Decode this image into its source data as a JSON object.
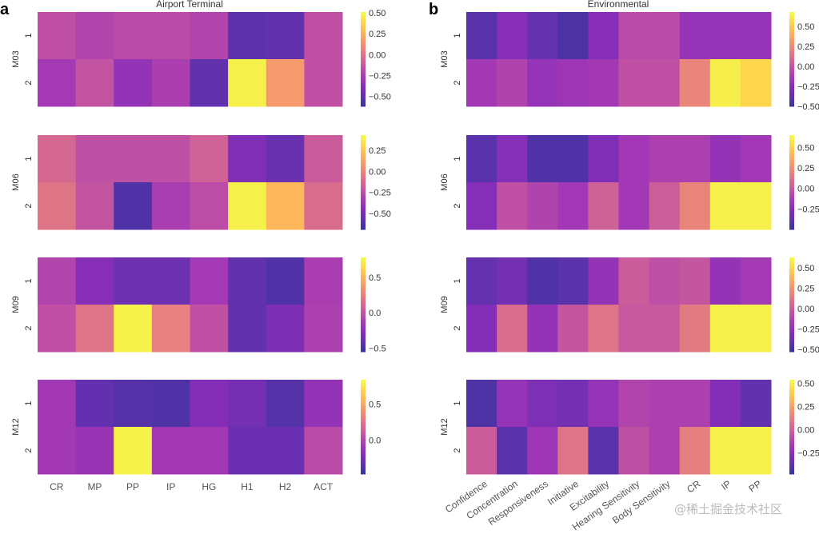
{
  "chart_data": [
    {
      "type": "heatmap",
      "panel": "a",
      "title": "Airport Terminal",
      "month": "M03",
      "rows": [
        "1",
        "2"
      ],
      "columns": [
        "CR",
        "MP",
        "PP",
        "IP",
        "HG",
        "H1",
        "H2",
        "ACT"
      ],
      "values": [
        [
          -0.17,
          -0.22,
          -0.19,
          -0.19,
          -0.22,
          -0.53,
          -0.51,
          -0.17
        ],
        [
          -0.28,
          -0.15,
          -0.34,
          -0.25,
          -0.51,
          0.48,
          0.17,
          -0.17
        ]
      ],
      "colorbar": {
        "range": [
          -0.62,
          0.51
        ],
        "ticks": [
          "0.50",
          "0.25",
          "0.00",
          "−0.25",
          "−0.50"
        ]
      }
    },
    {
      "type": "heatmap",
      "panel": "a",
      "month": "M06",
      "rows": [
        "1",
        "2"
      ],
      "columns": [
        "CR",
        "MP",
        "PP",
        "IP",
        "HG",
        "H1",
        "H2",
        "ACT"
      ],
      "values": [
        [
          -0.13,
          -0.24,
          -0.24,
          -0.24,
          -0.16,
          -0.49,
          -0.56,
          -0.19
        ],
        [
          -0.07,
          -0.22,
          -0.63,
          -0.33,
          -0.26,
          0.4,
          0.21,
          -0.11
        ]
      ],
      "colorbar": {
        "range": [
          -0.69,
          0.43
        ],
        "ticks": [
          "0.25",
          "0.00",
          "−0.25",
          "−0.50"
        ]
      }
    },
    {
      "type": "heatmap",
      "panel": "a",
      "month": "M09",
      "rows": [
        "1",
        "2"
      ],
      "columns": [
        "CR",
        "MP",
        "PP",
        "IP",
        "HG",
        "H1",
        "H2",
        "ACT"
      ],
      "values": [
        [
          -0.08,
          -0.28,
          -0.38,
          -0.38,
          -0.15,
          -0.42,
          -0.48,
          -0.12
        ],
        [
          -0.02,
          0.18,
          0.75,
          0.25,
          -0.02,
          -0.42,
          -0.32,
          -0.11
        ]
      ],
      "colorbar": {
        "range": [
          -0.55,
          0.78
        ],
        "ticks": [
          "0.5",
          "0.0",
          "−0.5"
        ]
      }
    },
    {
      "type": "heatmap",
      "panel": "a",
      "month": "M12",
      "rows": [
        "1",
        "2"
      ],
      "columns": [
        "CR",
        "MP",
        "PP",
        "IP",
        "HG",
        "H1",
        "H2",
        "ACT"
      ],
      "values": [
        [
          -0.08,
          -0.34,
          -0.38,
          -0.4,
          -0.21,
          -0.27,
          -0.38,
          -0.14
        ],
        [
          -0.08,
          -0.12,
          0.81,
          -0.08,
          -0.08,
          -0.31,
          -0.31,
          0.03
        ]
      ],
      "colorbar": {
        "range": [
          -0.47,
          0.84
        ],
        "ticks": [
          "0.5",
          "0.0"
        ]
      }
    },
    {
      "type": "heatmap",
      "panel": "b",
      "title": "Environmental",
      "month": "M03",
      "rows": [
        "1",
        "2"
      ],
      "columns": [
        "Confidence",
        "Concentration",
        "Responsiveness",
        "Initiative",
        "Excitability",
        "Hearing Sensitivity",
        "Body Sensitivity",
        "CR",
        "IP",
        "PP"
      ],
      "values": [
        [
          -0.41,
          -0.26,
          -0.38,
          -0.45,
          -0.26,
          -0.05,
          -0.05,
          -0.2,
          -0.2,
          -0.2
        ],
        [
          -0.15,
          -0.09,
          -0.2,
          -0.17,
          -0.15,
          -0.03,
          -0.03,
          0.23,
          0.64,
          0.56
        ]
      ],
      "colorbar": {
        "range": [
          -0.5,
          0.68
        ],
        "ticks": [
          "0.50",
          "0.25",
          "0.00",
          "−0.25",
          "−0.50"
        ]
      }
    },
    {
      "type": "heatmap",
      "panel": "b",
      "month": "M06",
      "rows": [
        "1",
        "2"
      ],
      "columns": [
        "Confidence",
        "Concentration",
        "Responsiveness",
        "Initiative",
        "Excitability",
        "Hearing Sensitivity",
        "Body Sensitivity",
        "CR",
        "IP",
        "PP"
      ],
      "values": [
        [
          -0.41,
          -0.27,
          -0.44,
          -0.44,
          -0.29,
          -0.16,
          -0.12,
          -0.12,
          -0.21,
          -0.16
        ],
        [
          -0.27,
          -0.04,
          -0.1,
          -0.16,
          0.04,
          -0.16,
          0.02,
          0.21,
          0.62,
          0.62
        ]
      ],
      "colorbar": {
        "range": [
          -0.5,
          0.65
        ],
        "ticks": [
          "0.50",
          "0.25",
          "0.00",
          "−0.25"
        ]
      }
    },
    {
      "type": "heatmap",
      "panel": "b",
      "month": "M09",
      "rows": [
        "1",
        "2"
      ],
      "columns": [
        "Confidence",
        "Concentration",
        "Responsiveness",
        "Initiative",
        "Excitability",
        "Hearing Sensitivity",
        "Body Sensitivity",
        "CR",
        "IP",
        "PP"
      ],
      "values": [
        [
          -0.41,
          -0.36,
          -0.47,
          -0.44,
          -0.24,
          -0.01,
          -0.07,
          -0.04,
          -0.24,
          -0.18
        ],
        [
          -0.3,
          0.07,
          -0.24,
          -0.04,
          0.11,
          -0.03,
          -0.03,
          0.14,
          0.6,
          0.6
        ]
      ],
      "colorbar": {
        "range": [
          -0.53,
          0.63
        ],
        "ticks": [
          "0.50",
          "0.25",
          "0.00",
          "−0.25",
          "−0.50"
        ]
      }
    },
    {
      "type": "heatmap",
      "panel": "b",
      "month": "M12",
      "rows": [
        "1",
        "2"
      ],
      "columns": [
        "Confidence",
        "Concentration",
        "Responsiveness",
        "Initiative",
        "Excitability",
        "Hearing Sensitivity",
        "Body Sensitivity",
        "CR",
        "IP",
        "PP"
      ],
      "values": [
        [
          -0.43,
          -0.22,
          -0.3,
          -0.33,
          -0.22,
          -0.12,
          -0.14,
          -0.14,
          -0.28,
          -0.38
        ],
        [
          -0.02,
          -0.4,
          -0.19,
          0.08,
          -0.4,
          -0.07,
          -0.14,
          0.13,
          0.51,
          0.51
        ]
      ],
      "colorbar": {
        "range": [
          -0.48,
          0.54
        ],
        "ticks": [
          "0.50",
          "0.25",
          "0.00",
          "−0.25"
        ]
      }
    }
  ],
  "colormap": "plasma",
  "panels": {
    "a": {
      "letter": "a",
      "title": "Airport Terminal"
    },
    "b": {
      "letter": "b",
      "title": "Environmental"
    }
  },
  "watermark": "@稀土掘金技术社区"
}
